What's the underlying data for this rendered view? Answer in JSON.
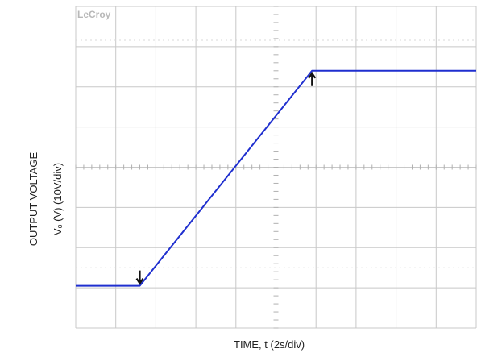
{
  "brand": "LeCroy",
  "chart_data": {
    "type": "line",
    "xlabel": "TIME, t (2s/div)",
    "ylabel_line1": "OUTPUT VOLTAGE",
    "ylabel_line2": "Vₒ (V) (10V/div)",
    "x_divisions": 10,
    "y_divisions": 8,
    "series": [
      {
        "x": [
          0.0,
          1.6,
          5.9,
          10.0
        ],
        "y": [
          1.05,
          1.05,
          6.4,
          6.4
        ]
      }
    ],
    "markers": [
      {
        "x": 1.6,
        "y": 1.05,
        "direction": "down"
      },
      {
        "x": 5.9,
        "y": 6.4,
        "direction": "up"
      }
    ],
    "colors": {
      "grid": "#c8c8c8",
      "trace": "#1f2fcf",
      "marker": "#111111"
    }
  }
}
